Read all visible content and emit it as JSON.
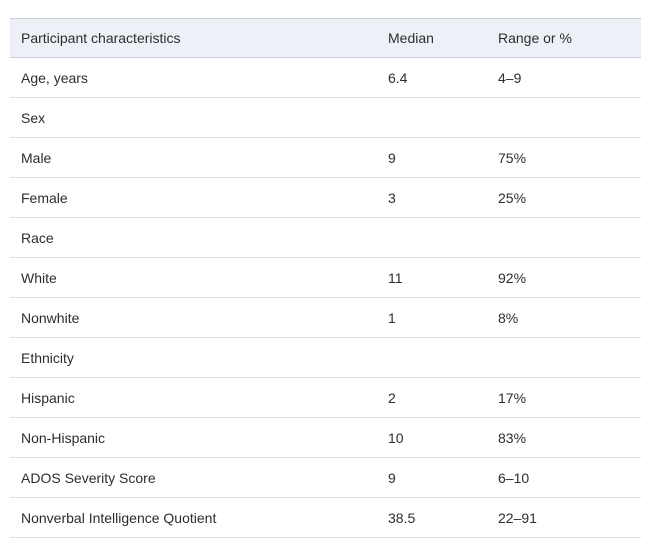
{
  "chart_data": {
    "type": "table",
    "title": "",
    "columns": [
      "Participant characteristics",
      "Median",
      "Range or %"
    ],
    "rows": [
      {
        "label": "Age, years",
        "median": "6.4",
        "range": "4–9"
      },
      {
        "label": "Sex",
        "median": "",
        "range": ""
      },
      {
        "label": "Male",
        "median": "9",
        "range": "75%"
      },
      {
        "label": "Female",
        "median": "3",
        "range": "25%"
      },
      {
        "label": "Race",
        "median": "",
        "range": ""
      },
      {
        "label": "White",
        "median": "11",
        "range": "92%"
      },
      {
        "label": "Nonwhite",
        "median": "1",
        "range": "8%"
      },
      {
        "label": "Ethnicity",
        "median": "",
        "range": ""
      },
      {
        "label": "Hispanic",
        "median": "2",
        "range": "17%"
      },
      {
        "label": "Non-Hispanic",
        "median": "10",
        "range": "83%"
      },
      {
        "label": "ADOS Severity Score",
        "median": "9",
        "range": "6–10"
      },
      {
        "label": "Nonverbal Intelligence Quotient",
        "median": "38.5",
        "range": "22–91"
      }
    ],
    "colors": {
      "header_bg": "#edf1f7",
      "border": "#dbe0e5",
      "text": "#2d2d2d"
    }
  }
}
